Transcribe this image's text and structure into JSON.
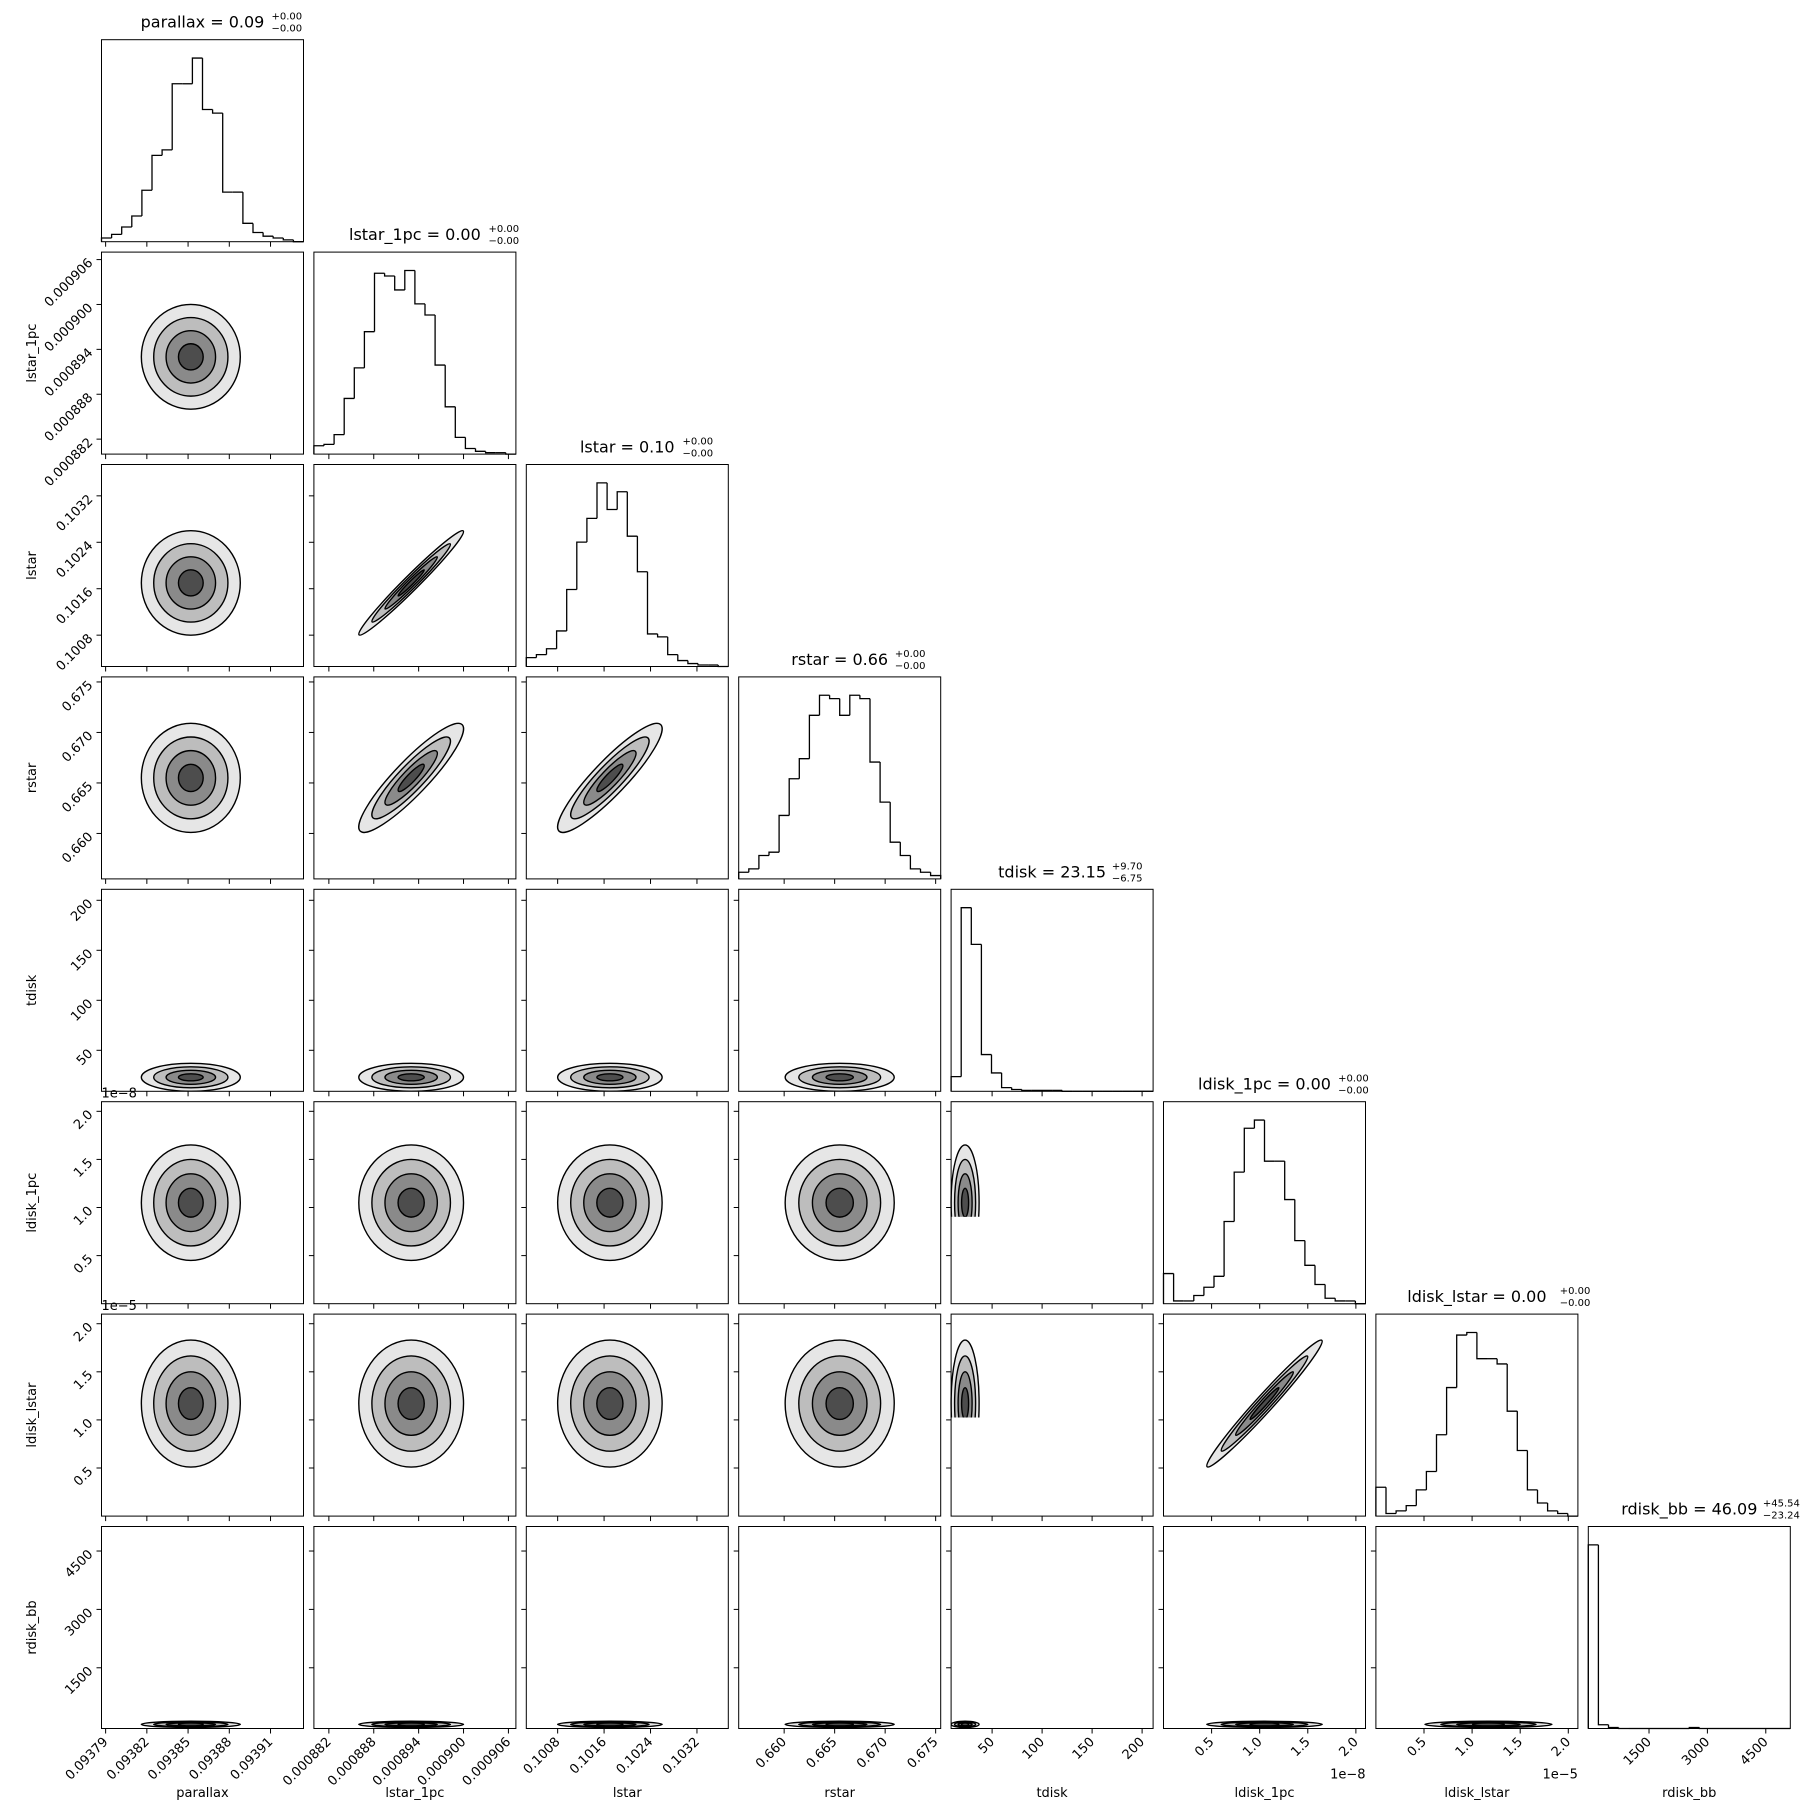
{
  "chart_data": {
    "type": "corner",
    "color": "#000000",
    "params": [
      {
        "label": "parallax",
        "title": "parallax = 0.09",
        "title_sup": "+0.00",
        "title_sub": "−0.00",
        "xlim": [
          0.093787,
          0.093934
        ],
        "ticks": [
          0.09379,
          0.09382,
          0.09385,
          0.09388,
          0.09391
        ],
        "bins": [
          0.093787,
          0.09379435,
          0.0938017,
          0.09380905,
          0.0938164,
          0.09382375,
          0.0938311,
          0.09383845,
          0.0938458,
          0.09385315,
          0.0938605,
          0.09386785,
          0.0938752,
          0.09388255,
          0.0938899,
          0.09389725,
          0.0939046,
          0.09391195,
          0.0939193,
          0.09392665,
          0.093934
        ],
        "counts": [
          2,
          4,
          8,
          14,
          28,
          47,
          50,
          86,
          86,
          100,
          72,
          70,
          27,
          27,
          10,
          5,
          3,
          2,
          1,
          0
        ],
        "center": 0.093852,
        "sd": 1.8e-05
      },
      {
        "label": "lstar_1pc",
        "title": "lstar_1pc = 0.00",
        "title_sup": "+0.00",
        "title_sub": "−0.00",
        "xlim": [
          0.00088,
          0.000907
        ],
        "ticks": [
          0.000882,
          0.000888,
          0.000894,
          {
            "value": 0.0009,
            "label": "0.000900"
          },
          0.000906
        ],
        "bins": [
          0.00088,
          0.00088135,
          0.0008827,
          0.00088405,
          0.0008854,
          0.00088675,
          0.0008881,
          0.00088945,
          0.0008908,
          0.00089215,
          0.0008935,
          0.00089485,
          0.0008962,
          0.00089755,
          0.0008989,
          0.00090025,
          0.0009016,
          0.00090295,
          0.0009043,
          0.00090565,
          0.000907
        ],
        "counts": [
          6,
          7,
          14,
          40,
          62,
          88,
          130,
          128,
          118,
          132,
          108,
          100,
          64,
          34,
          12,
          4,
          2,
          1,
          1,
          0
        ],
        "center": 0.000893,
        "sd": 3.5e-06
      },
      {
        "label": "lstar",
        "title": "lstar = 0.10",
        "title_sup": "+0.00",
        "title_sub": "−0.00",
        "xlim": [
          0.10026,
          0.10374
        ],
        "ticks": [
          0.1008,
          0.1016,
          0.1024,
          0.1032
        ],
        "bins": [
          0.10026,
          0.100434,
          0.100608,
          0.100782,
          0.100956,
          0.10113,
          0.101304,
          0.101478,
          0.101652,
          0.101826,
          0.102,
          0.102174,
          0.102348,
          0.102522,
          0.102696,
          0.10287,
          0.103044,
          0.103218,
          0.103392,
          0.103566,
          0.10374
        ],
        "counts": [
          6,
          8,
          12,
          24,
          52,
          84,
          100,
          124,
          106,
          118,
          88,
          64,
          22,
          20,
          8,
          4,
          2,
          1,
          1,
          0
        ],
        "center": 0.1017,
        "sd": 0.00045
      },
      {
        "label": "rstar",
        "title": "rstar = 0.66",
        "title_sup": "+0.00",
        "title_sub": "−0.00",
        "xlim": [
          0.6555,
          0.6755
        ],
        "ticks": [
          {
            "value": 0.66,
            "label": "0.660"
          },
          0.665,
          {
            "value": 0.67,
            "label": "0.670"
          },
          0.675
        ],
        "bins": [
          0.6555,
          0.6565,
          0.6575,
          0.6585,
          0.6595,
          0.6605,
          0.6615,
          0.6625,
          0.6635,
          0.6645,
          0.6655,
          0.6665,
          0.6675,
          0.6685,
          0.6695,
          0.6705,
          0.6715,
          0.6725,
          0.6735,
          0.6745,
          0.6755
        ],
        "counts": [
          4,
          6,
          14,
          16,
          38,
          60,
          72,
          98,
          110,
          108,
          98,
          110,
          108,
          70,
          46,
          22,
          14,
          6,
          4,
          2
        ],
        "center": 0.6655,
        "sd": 0.0027
      },
      {
        "label": "tdisk",
        "title": "tdisk = 23.15",
        "title_sup": "+9.70",
        "title_sub": "−6.75",
        "xlim": [
          9,
          211
        ],
        "ticks": [
          50,
          100,
          150,
          200
        ],
        "bins": [
          9,
          19.1,
          29.2,
          39.3,
          49.4,
          59.5,
          69.6,
          79.7,
          89.8,
          99.9,
          110,
          120.1,
          130.2,
          140.3,
          150.4,
          160.5,
          170.6,
          180.7,
          190.8,
          200.9,
          211
        ],
        "counts": [
          16,
          200,
          160,
          40,
          20,
          4,
          2,
          1,
          1,
          1,
          1,
          0,
          0,
          0,
          0,
          0,
          0,
          0,
          0,
          0
        ],
        "center": 23,
        "sd": 7
      },
      {
        "label": "ldisk_1pc",
        "title": "ldisk_1pc = 0.00",
        "title_sup": "+0.00",
        "title_sub": "−0.00",
        "offset": "1e−8",
        "xlim": [
          0,
          2.1e-08
        ],
        "ticks": [
          {
            "value": 5e-09,
            "label": "0.5"
          },
          {
            "value": 1e-08,
            "label": "1.0"
          },
          {
            "value": 1.5e-08,
            "label": "1.5"
          },
          {
            "value": 2e-08,
            "label": "2.0"
          }
        ],
        "bins": [
          0,
          1.05e-09,
          2.1e-09,
          3.15e-09,
          4.2e-09,
          5.25e-09,
          6.3e-09,
          7.35e-09,
          8.4e-09,
          9.45e-09,
          1.05e-08,
          1.155e-08,
          1.26e-08,
          1.365e-08,
          1.47e-08,
          1.575e-08,
          1.68e-08,
          1.785e-08,
          1.89e-08,
          1.995e-08,
          2.1e-08
        ],
        "counts": [
          22,
          2,
          2,
          6,
          12,
          20,
          60,
          96,
          128,
          134,
          104,
          104,
          76,
          46,
          28,
          14,
          4,
          2,
          2,
          0
        ],
        "center": 1.05e-08,
        "sd": 3e-09
      },
      {
        "label": "ldisk_lstar",
        "title": "ldisk_lstar = 0.00",
        "title_sup": "+0.00",
        "title_sub": "−0.00",
        "offset": "1e−5",
        "xlim": [
          0,
          2.1e-05
        ],
        "ticks": [
          {
            "value": 5e-06,
            "label": "0.5"
          },
          {
            "value": 1e-05,
            "label": "1.0"
          },
          {
            "value": 1.5e-05,
            "label": "1.5"
          },
          {
            "value": 2e-05,
            "label": "2.0"
          }
        ],
        "bins": [
          0,
          1.05e-06,
          2.1e-06,
          3.15e-06,
          4.2e-06,
          5.25e-06,
          6.3e-06,
          7.35e-06,
          8.4e-06,
          9.45e-06,
          1.05e-05,
          1.155e-05,
          1.26e-05,
          1.365e-05,
          1.47e-05,
          1.575e-05,
          1.68e-05,
          1.785e-05,
          1.89e-05,
          1.995e-05,
          2.1e-05
        ],
        "counts": [
          22,
          2,
          4,
          8,
          20,
          34,
          62,
          98,
          138,
          140,
          120,
          120,
          116,
          80,
          50,
          20,
          10,
          4,
          2,
          0
        ],
        "center": 1.17e-05,
        "sd": 3.3e-06
      },
      {
        "label": "rdisk_bb",
        "title": "rdisk_bb = 46.09",
        "title_sup": "+45.54",
        "title_sub": "−23.24",
        "xlim": [
          -60,
          5130
        ],
        "ticks": [
          1500,
          3000,
          4500
        ],
        "bins": [
          -60,
          199.5,
          459,
          718.5,
          978,
          1237.5,
          1497,
          1756.5,
          2016,
          2275.5,
          2535,
          2794.5,
          3054,
          3313.5,
          3573,
          3832.5,
          4092,
          4351.5,
          4611,
          4870.5,
          5130
        ],
        "counts": [
          194,
          4,
          1,
          0,
          0,
          0,
          0,
          0,
          0,
          0,
          1,
          0,
          0,
          0,
          0,
          0,
          0,
          0,
          0,
          0
        ],
        "center": 46,
        "sd": 40
      }
    ],
    "correlations": [
      [],
      [
        0
      ],
      [
        0,
        0.98
      ],
      [
        0,
        0.9,
        0.9
      ],
      [
        0,
        0,
        0,
        0
      ],
      [
        0,
        0,
        0,
        0,
        0
      ],
      [
        0,
        0,
        0,
        0,
        0,
        0.98
      ],
      [
        0,
        0,
        0,
        0,
        0,
        0,
        0
      ]
    ]
  }
}
